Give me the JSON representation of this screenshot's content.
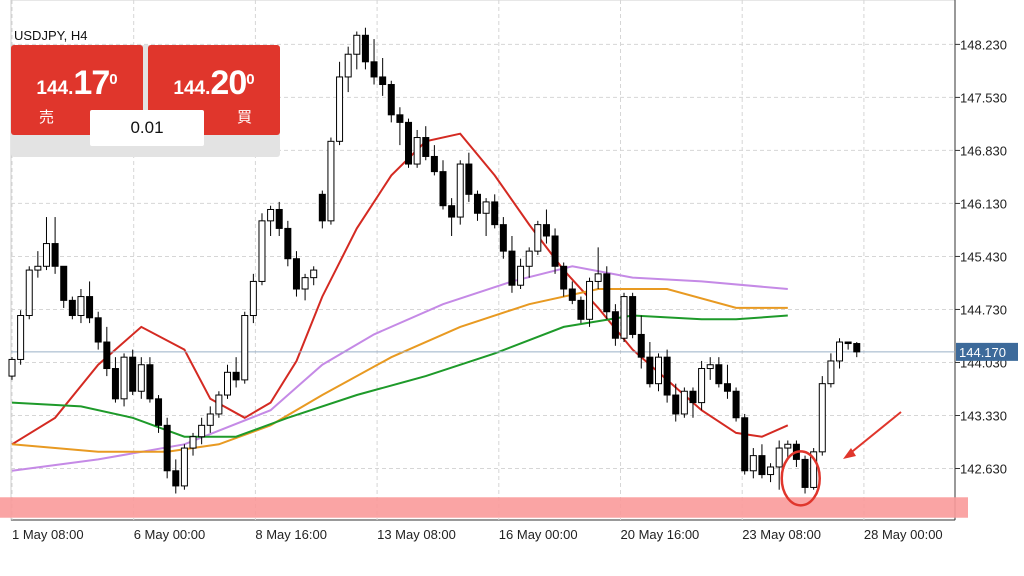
{
  "symbol_label": "USDJPY, H4",
  "trade_panel": {
    "sell": {
      "price_small": "144.",
      "price_big": "17",
      "price_sup": "0",
      "label": "売"
    },
    "buy": {
      "price_small": "144.",
      "price_big": "20",
      "price_sup": "0",
      "label": "買"
    },
    "lot": "0.01"
  },
  "current_price_label": "144.170",
  "colors": {
    "up_candle": "#ffffff",
    "down_candle": "#000000",
    "ma_red": "#d42a22",
    "ma_violet": "#c58ae6",
    "ma_orange": "#e89a22",
    "ma_green": "#1e9a2a",
    "support_zone": "#f99a9a",
    "annotation": "#e0362c",
    "price_tag": "#3d6a9a"
  },
  "chart_data": {
    "type": "candlestick",
    "title": "USDJPY, H4",
    "y_ticks": [
      "148.230",
      "147.530",
      "146.830",
      "146.130",
      "145.430",
      "144.730",
      "144.030",
      "143.330",
      "142.630"
    ],
    "x_ticks": [
      "1 May 08:00",
      "6 May 00:00",
      "8 May 16:00",
      "13 May 08:00",
      "16 May 00:00",
      "20 May 16:00",
      "23 May 08:00",
      "28 May 00:00"
    ],
    "ylim": [
      141.95,
      148.75
    ],
    "grid": true,
    "current_price": 144.17,
    "support_zone": [
      141.98,
      142.25
    ],
    "candles": [
      [
        143.85,
        144.1,
        143.8,
        144.07
      ],
      [
        144.07,
        144.72,
        144.0,
        144.65
      ],
      [
        144.65,
        145.3,
        144.6,
        145.25
      ],
      [
        145.25,
        145.5,
        145.15,
        145.3
      ],
      [
        145.3,
        145.95,
        145.25,
        145.6
      ],
      [
        145.6,
        145.95,
        145.2,
        145.3
      ],
      [
        145.3,
        145.3,
        144.75,
        144.85
      ],
      [
        144.85,
        144.9,
        144.6,
        144.65
      ],
      [
        144.65,
        145.0,
        144.55,
        144.9
      ],
      [
        144.9,
        145.1,
        144.55,
        144.62
      ],
      [
        144.62,
        144.7,
        144.2,
        144.3
      ],
      [
        144.3,
        144.5,
        143.85,
        143.95
      ],
      [
        143.95,
        144.1,
        143.5,
        143.55
      ],
      [
        143.55,
        144.15,
        143.45,
        144.1
      ],
      [
        144.1,
        144.2,
        143.6,
        143.65
      ],
      [
        143.65,
        144.1,
        143.55,
        144.0
      ],
      [
        144.0,
        144.1,
        143.5,
        143.55
      ],
      [
        143.55,
        143.6,
        143.1,
        143.2
      ],
      [
        143.2,
        143.3,
        142.5,
        142.6
      ],
      [
        142.6,
        142.75,
        142.3,
        142.4
      ],
      [
        142.4,
        142.95,
        142.35,
        142.9
      ],
      [
        142.9,
        143.1,
        142.8,
        143.05
      ],
      [
        143.05,
        143.3,
        142.95,
        143.2
      ],
      [
        143.2,
        143.45,
        143.1,
        143.35
      ],
      [
        143.35,
        143.65,
        143.3,
        143.6
      ],
      [
        143.6,
        144.0,
        143.55,
        143.9
      ],
      [
        143.9,
        144.1,
        143.7,
        143.8
      ],
      [
        143.8,
        144.7,
        143.75,
        144.65
      ],
      [
        144.65,
        145.2,
        144.55,
        145.1
      ],
      [
        145.1,
        146.0,
        145.05,
        145.9
      ],
      [
        145.9,
        146.1,
        145.7,
        146.05
      ],
      [
        146.05,
        146.15,
        145.7,
        145.8
      ],
      [
        145.8,
        145.9,
        145.3,
        145.4
      ],
      [
        145.4,
        145.5,
        144.9,
        145.0
      ],
      [
        145.0,
        145.2,
        144.85,
        145.15
      ],
      [
        145.15,
        145.3,
        145.05,
        145.25
      ],
      [
        146.25,
        146.3,
        145.8,
        145.9
      ],
      [
        145.9,
        147.0,
        145.85,
        146.95
      ],
      [
        146.95,
        148.0,
        146.9,
        147.8
      ],
      [
        147.8,
        148.2,
        147.6,
        148.1
      ],
      [
        148.1,
        148.4,
        147.9,
        148.35
      ],
      [
        148.35,
        148.45,
        147.9,
        148.0
      ],
      [
        148.0,
        148.3,
        147.7,
        147.8
      ],
      [
        147.8,
        148.05,
        147.55,
        147.7
      ],
      [
        147.7,
        147.75,
        147.2,
        147.3
      ],
      [
        147.3,
        147.4,
        146.9,
        147.2
      ],
      [
        147.2,
        147.25,
        146.6,
        146.65
      ],
      [
        146.65,
        147.1,
        146.6,
        147.0
      ],
      [
        147.0,
        147.15,
        146.7,
        146.75
      ],
      [
        146.75,
        146.9,
        146.5,
        146.55
      ],
      [
        146.55,
        146.7,
        146.05,
        146.1
      ],
      [
        146.1,
        146.2,
        145.7,
        145.95
      ],
      [
        145.95,
        146.7,
        145.85,
        146.65
      ],
      [
        146.65,
        146.8,
        146.15,
        146.25
      ],
      [
        146.25,
        146.3,
        145.9,
        146.0
      ],
      [
        146.0,
        146.2,
        145.7,
        146.15
      ],
      [
        146.15,
        146.25,
        145.8,
        145.85
      ],
      [
        145.85,
        145.95,
        145.4,
        145.5
      ],
      [
        145.5,
        145.7,
        144.95,
        145.05
      ],
      [
        145.05,
        145.4,
        145.0,
        145.3
      ],
      [
        145.3,
        145.55,
        145.15,
        145.5
      ],
      [
        145.5,
        145.9,
        145.45,
        145.85
      ],
      [
        145.85,
        146.05,
        145.6,
        145.7
      ],
      [
        145.7,
        145.8,
        145.2,
        145.3
      ],
      [
        145.3,
        145.35,
        144.9,
        145.0
      ],
      [
        145.0,
        145.1,
        144.8,
        144.85
      ],
      [
        144.85,
        144.9,
        144.55,
        144.6
      ],
      [
        144.6,
        145.15,
        144.5,
        145.1
      ],
      [
        145.1,
        145.55,
        145.0,
        145.2
      ],
      [
        145.2,
        145.3,
        144.6,
        144.7
      ],
      [
        144.7,
        144.8,
        144.25,
        144.35
      ],
      [
        144.35,
        144.95,
        144.3,
        144.9
      ],
      [
        144.9,
        144.95,
        144.35,
        144.4
      ],
      [
        144.4,
        144.65,
        143.95,
        144.1
      ],
      [
        144.1,
        144.3,
        143.7,
        143.75
      ],
      [
        143.75,
        144.15,
        143.65,
        144.1
      ],
      [
        144.1,
        144.2,
        143.5,
        143.6
      ],
      [
        143.6,
        143.75,
        143.25,
        143.35
      ],
      [
        143.35,
        143.7,
        143.3,
        143.65
      ],
      [
        143.65,
        143.7,
        143.3,
        143.5
      ],
      [
        143.5,
        144.05,
        143.4,
        143.95
      ],
      [
        143.95,
        144.1,
        143.8,
        144.0
      ],
      [
        144.0,
        144.1,
        143.7,
        143.75
      ],
      [
        143.75,
        144.0,
        143.55,
        143.65
      ],
      [
        143.65,
        143.7,
        143.25,
        143.3
      ],
      [
        143.3,
        143.35,
        142.55,
        142.6
      ],
      [
        142.6,
        142.9,
        142.5,
        142.8
      ],
      [
        142.8,
        142.95,
        142.5,
        142.55
      ],
      [
        142.55,
        142.7,
        142.45,
        142.65
      ],
      [
        142.65,
        143.0,
        142.35,
        142.9
      ],
      [
        142.9,
        143.0,
        142.75,
        142.95
      ],
      [
        142.95,
        143.0,
        142.65,
        142.75
      ],
      [
        142.75,
        142.8,
        142.3,
        142.38
      ],
      [
        142.38,
        142.9,
        142.35,
        142.85
      ],
      [
        142.85,
        143.85,
        142.8,
        143.75
      ],
      [
        143.75,
        144.15,
        143.7,
        144.05
      ],
      [
        144.05,
        144.35,
        143.95,
        144.3
      ],
      [
        144.3,
        144.3,
        144.2,
        144.28
      ],
      [
        144.28,
        144.3,
        144.1,
        144.17
      ]
    ],
    "series": [
      {
        "name": "",
        "color": "#d42a22",
        "values": [
          [
            0,
            142.95
          ],
          [
            5,
            143.3
          ],
          [
            10,
            144.0
          ],
          [
            15,
            144.5
          ],
          [
            20,
            144.2
          ],
          [
            23,
            143.55
          ],
          [
            27,
            143.3
          ],
          [
            30,
            143.5
          ],
          [
            33,
            144.05
          ],
          [
            36,
            144.9
          ],
          [
            40,
            145.8
          ],
          [
            44,
            146.5
          ],
          [
            48,
            146.95
          ],
          [
            52,
            147.05
          ],
          [
            56,
            146.5
          ],
          [
            60,
            145.85
          ],
          [
            64,
            145.25
          ],
          [
            68,
            144.75
          ],
          [
            72,
            144.2
          ],
          [
            76,
            143.8
          ],
          [
            80,
            143.4
          ],
          [
            84,
            143.1
          ],
          [
            87,
            143.05
          ],
          [
            90,
            143.2
          ]
        ]
      },
      {
        "name": "",
        "color": "#c58ae6",
        "values": [
          [
            0,
            142.6
          ],
          [
            10,
            142.75
          ],
          [
            20,
            142.95
          ],
          [
            30,
            143.4
          ],
          [
            36,
            144.0
          ],
          [
            42,
            144.4
          ],
          [
            50,
            144.8
          ],
          [
            58,
            145.1
          ],
          [
            65,
            145.3
          ],
          [
            72,
            145.15
          ],
          [
            80,
            145.1
          ],
          [
            90,
            145.0
          ]
        ]
      },
      {
        "name": "",
        "color": "#e89a22",
        "values": [
          [
            0,
            142.95
          ],
          [
            10,
            142.85
          ],
          [
            18,
            142.85
          ],
          [
            24,
            142.95
          ],
          [
            30,
            143.2
          ],
          [
            36,
            143.6
          ],
          [
            44,
            144.1
          ],
          [
            52,
            144.5
          ],
          [
            60,
            144.8
          ],
          [
            68,
            145.0
          ],
          [
            76,
            145.0
          ],
          [
            84,
            144.75
          ],
          [
            90,
            144.75
          ]
        ]
      },
      {
        "name": "",
        "color": "#1e9a2a",
        "values": [
          [
            0,
            143.5
          ],
          [
            8,
            143.45
          ],
          [
            14,
            143.3
          ],
          [
            20,
            143.05
          ],
          [
            26,
            143.05
          ],
          [
            32,
            143.3
          ],
          [
            40,
            143.6
          ],
          [
            48,
            143.85
          ],
          [
            56,
            144.15
          ],
          [
            64,
            144.5
          ],
          [
            72,
            144.65
          ],
          [
            80,
            144.6
          ],
          [
            84,
            144.6
          ],
          [
            90,
            144.65
          ]
        ]
      }
    ]
  }
}
